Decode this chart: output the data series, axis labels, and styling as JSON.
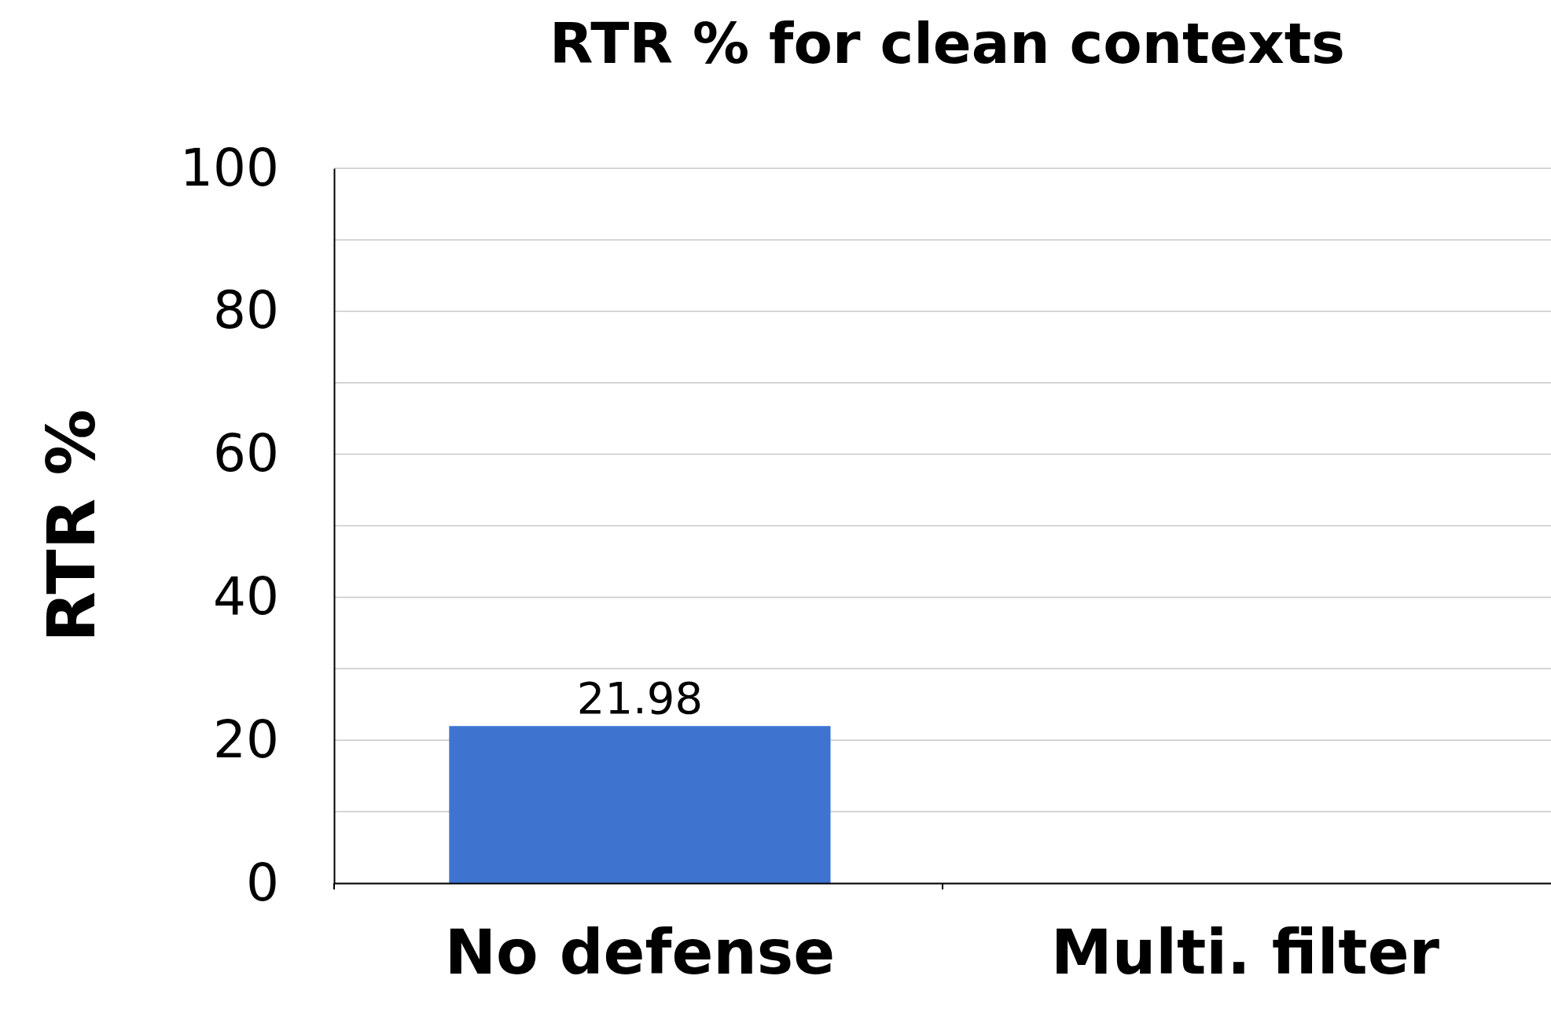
{
  "chart_data": {
    "type": "bar",
    "title": "RTR % for clean contexts",
    "ylabel": "RTR %",
    "categories": [
      "No defense",
      "Multi. filter"
    ],
    "values": [
      21.98,
      0
    ],
    "value_labels": [
      "21.98",
      null
    ],
    "color": "#3e74d0",
    "ylim": [
      0,
      100
    ],
    "yticks": [
      0,
      {
        "value": 10,
        "label": null
      },
      20,
      {
        "value": 30,
        "label": null
      },
      40,
      {
        "value": 50,
        "label": null
      },
      60,
      {
        "value": 70,
        "label": null
      },
      80,
      {
        "value": 90,
        "label": null
      },
      100
    ],
    "grid": "y"
  }
}
